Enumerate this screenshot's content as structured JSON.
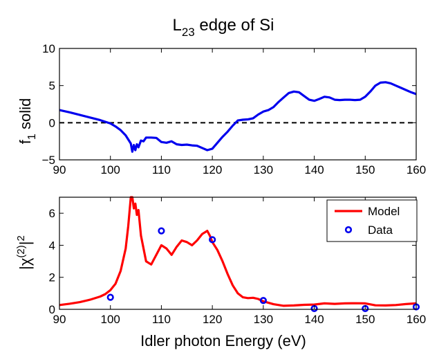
{
  "chart_data": [
    {
      "type": "line",
      "title": "L",
      "title_sub": "23",
      "title_rest": " edge of Si",
      "ylabel": "f",
      "ylabel_sub": "1",
      "ylabel_rest": " solid",
      "xlabel": "",
      "xlim": [
        90,
        160
      ],
      "ylim": [
        -5,
        10
      ],
      "xticks": [
        90,
        100,
        110,
        120,
        130,
        140,
        150,
        160
      ],
      "yticks": [
        -5,
        0,
        5,
        10
      ],
      "ytick_labels": [
        "−5",
        "0",
        "5",
        "10"
      ],
      "grid": false,
      "reference_line": {
        "y": 0,
        "style": "dashed",
        "color": "#000000"
      },
      "series": [
        {
          "color": "#0000ee",
          "x": [
            90,
            92,
            94,
            96,
            98,
            100,
            101,
            102,
            103,
            104,
            104.3,
            104.6,
            104.9,
            105.2,
            105.5,
            106,
            106.5,
            107,
            108,
            109,
            110,
            111,
            112,
            113,
            114,
            115,
            116,
            117,
            118,
            119,
            120,
            121,
            122,
            123,
            124,
            125,
            126,
            127,
            128,
            129,
            130,
            131,
            132,
            133,
            134,
            135,
            136,
            137,
            138,
            139,
            140,
            141,
            142,
            143,
            144,
            145,
            146,
            147,
            148,
            149,
            150,
            151,
            152,
            153,
            154,
            155,
            156,
            157,
            158,
            159,
            160
          ],
          "y": [
            1.7,
            1.4,
            1.05,
            0.7,
            0.35,
            -0.1,
            -0.5,
            -1.0,
            -1.7,
            -2.8,
            -3.9,
            -3.0,
            -3.7,
            -2.9,
            -3.3,
            -2.4,
            -2.5,
            -2.0,
            -2.0,
            -2.05,
            -2.6,
            -2.7,
            -2.5,
            -2.9,
            -3.0,
            -2.95,
            -3.05,
            -3.1,
            -3.4,
            -3.7,
            -3.5,
            -2.7,
            -1.9,
            -1.2,
            -0.4,
            0.3,
            0.4,
            0.45,
            0.6,
            1.1,
            1.5,
            1.7,
            2.1,
            2.8,
            3.4,
            4.0,
            4.2,
            4.1,
            3.6,
            3.1,
            2.95,
            3.2,
            3.5,
            3.4,
            3.1,
            3.05,
            3.1,
            3.1,
            3.05,
            3.1,
            3.5,
            4.2,
            5.0,
            5.4,
            5.45,
            5.3,
            5.0,
            4.7,
            4.4,
            4.1,
            3.85
          ]
        }
      ]
    },
    {
      "type": "line",
      "title": "",
      "xlabel": "Idler photon Energy (eV)",
      "ylabel_pre": "|χ",
      "ylabel_sup": "(2)",
      "ylabel_mid": "|",
      "ylabel_sup2": "2",
      "xlim": [
        90,
        160
      ],
      "ylim": [
        0,
        7
      ],
      "xticks": [
        90,
        100,
        110,
        120,
        130,
        140,
        150,
        160
      ],
      "yticks": [
        0,
        2,
        4,
        6
      ],
      "ytick_labels": [
        "0",
        "2",
        "4",
        "6"
      ],
      "grid": false,
      "legend": {
        "placement": "top-right",
        "entries": [
          {
            "label": "Model",
            "kind": "line",
            "color": "#ff0000"
          },
          {
            "label": "Data",
            "kind": "marker",
            "color": "#0000ee"
          }
        ]
      },
      "series": [
        {
          "name": "Model",
          "kind": "line",
          "color": "#ff0000",
          "x": [
            90,
            92,
            94,
            96,
            98,
            99,
            100,
            101,
            102,
            103,
            103.5,
            104,
            104.3,
            104.6,
            104.9,
            105.2,
            105.5,
            106,
            107,
            108,
            109,
            110,
            111,
            112,
            113,
            114,
            115,
            116,
            117,
            118,
            119,
            119.5,
            120,
            121,
            122,
            123,
            124,
            125,
            126,
            127,
            128,
            129,
            130,
            132,
            134,
            136,
            138,
            140,
            142,
            144,
            146,
            148,
            150,
            152,
            154,
            156,
            158,
            160
          ],
          "y": [
            0.27,
            0.35,
            0.45,
            0.6,
            0.8,
            0.95,
            1.2,
            1.6,
            2.4,
            3.8,
            5.2,
            7.0,
            7.0,
            6.3,
            6.6,
            5.9,
            6.2,
            4.6,
            3.0,
            2.8,
            3.4,
            4.0,
            3.8,
            3.4,
            3.9,
            4.3,
            4.2,
            4.0,
            4.3,
            4.7,
            4.9,
            4.6,
            4.2,
            3.7,
            3.0,
            2.2,
            1.5,
            1.0,
            0.75,
            0.7,
            0.72,
            0.65,
            0.5,
            0.32,
            0.22,
            0.24,
            0.28,
            0.3,
            0.37,
            0.34,
            0.37,
            0.38,
            0.37,
            0.25,
            0.24,
            0.27,
            0.33,
            0.37
          ]
        },
        {
          "name": "Data",
          "kind": "scatter",
          "color": "#0000ee",
          "x": [
            100,
            110,
            120,
            130,
            140,
            150,
            160
          ],
          "y": [
            0.75,
            4.9,
            4.35,
            0.55,
            0.05,
            0.05,
            0.15
          ]
        }
      ]
    }
  ]
}
